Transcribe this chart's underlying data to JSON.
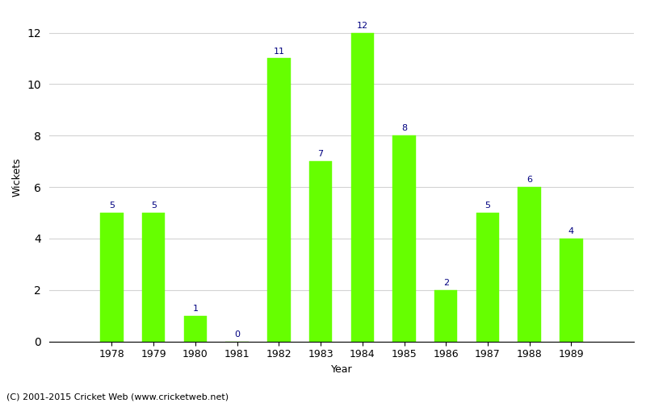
{
  "years": [
    1978,
    1979,
    1980,
    1981,
    1982,
    1983,
    1984,
    1985,
    1986,
    1987,
    1988,
    1989
  ],
  "wickets": [
    5,
    5,
    1,
    0,
    11,
    7,
    12,
    8,
    2,
    5,
    6,
    4
  ],
  "bar_color": "#66ff00",
  "bar_edge_color": "#66ff00",
  "label_color": "#000080",
  "xlabel": "Year",
  "ylabel": "Wickets",
  "ylim": [
    0,
    12.8
  ],
  "xlim": [
    1976.5,
    1990.5
  ],
  "yticks": [
    0,
    2,
    4,
    6,
    8,
    10,
    12
  ],
  "footer": "(C) 2001-2015 Cricket Web (www.cricketweb.net)",
  "label_fontsize": 8,
  "axis_fontsize": 9,
  "footer_fontsize": 8,
  "bar_width": 0.55
}
